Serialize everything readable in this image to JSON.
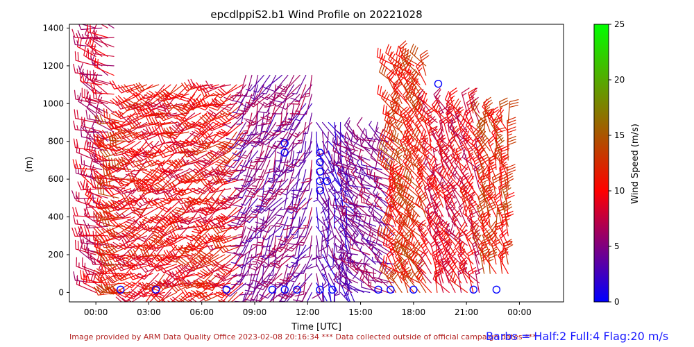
{
  "chart_data": {
    "type": "wind-barb",
    "title": "epcdlppiS2.b1 Wind Profile on 20221028",
    "xlabel": "Time [UTC]",
    "ylabel": "(m)",
    "x_ticks": [
      "00:00",
      "03:00",
      "06:00",
      "09:00",
      "12:00",
      "15:00",
      "18:00",
      "21:00",
      "00:00"
    ],
    "x_tick_hours": [
      0,
      3,
      6,
      9,
      12,
      15,
      18,
      21,
      24
    ],
    "xlim_hours": [
      -1.5,
      26.5
    ],
    "y_ticks": [
      0,
      200,
      400,
      600,
      800,
      1000,
      1200,
      1400
    ],
    "ylim": [
      -50,
      1420
    ],
    "grid": false,
    "colorbar": {
      "label": "Wind Speed (m/s)",
      "range": [
        0,
        25
      ],
      "ticks": [
        0,
        5,
        10,
        15,
        20,
        25
      ],
      "colors": [
        "#0000ff",
        "#ff0000",
        "#00ff00"
      ]
    },
    "barbs_legend": "Barbs = Half:2 Full:4 Flag:20 m/s",
    "calm_points": [
      {
        "hour": 1.4,
        "height": 15
      },
      {
        "hour": 3.4,
        "height": 15
      },
      {
        "hour": 7.4,
        "height": 15
      },
      {
        "hour": 10.0,
        "height": 15
      },
      {
        "hour": 10.7,
        "height": 15
      },
      {
        "hour": 11.4,
        "height": 15
      },
      {
        "hour": 12.7,
        "height": 15
      },
      {
        "hour": 13.4,
        "height": 15
      },
      {
        "hour": 16.0,
        "height": 15
      },
      {
        "hour": 16.7,
        "height": 15
      },
      {
        "hour": 18.0,
        "height": 15
      },
      {
        "hour": 21.4,
        "height": 15
      },
      {
        "hour": 22.7,
        "height": 15
      },
      {
        "hour": 10.7,
        "height": 790
      },
      {
        "hour": 10.7,
        "height": 740
      },
      {
        "hour": 12.7,
        "height": 740
      },
      {
        "hour": 12.7,
        "height": 690
      },
      {
        "hour": 12.7,
        "height": 640
      },
      {
        "hour": 13.1,
        "height": 590
      },
      {
        "hour": 12.7,
        "height": 590
      },
      {
        "hour": 12.7,
        "height": 540
      },
      {
        "hour": 19.4,
        "height": 1105
      }
    ],
    "regimes": [
      {
        "hours": [
          0,
          1.2
        ],
        "heights": [
          0,
          1400
        ],
        "speed": 8,
        "direction": 290
      },
      {
        "hours": [
          1.3,
          2.2
        ],
        "heights": [
          0,
          900
        ],
        "speed": 12,
        "direction": 260
      },
      {
        "hours": [
          2.2,
          8.5
        ],
        "heights": [
          0,
          1100
        ],
        "speed": 10,
        "direction": 240
      },
      {
        "hours": [
          8.5,
          12.5
        ],
        "heights": [
          0,
          1150
        ],
        "speed": 5,
        "direction": 210
      },
      {
        "hours": [
          12.5,
          14.5
        ],
        "heights": [
          0,
          900
        ],
        "speed": 3,
        "direction": 160
      },
      {
        "hours": [
          14.5,
          17.0
        ],
        "heights": [
          0,
          800
        ],
        "speed": 5,
        "direction": 300
      },
      {
        "hours": [
          17.0,
          19.0
        ],
        "heights": [
          0,
          1200
        ],
        "speed": 12,
        "direction": 320
      },
      {
        "hours": [
          19.0,
          22.0
        ],
        "heights": [
          0,
          950
        ],
        "speed": 9,
        "direction": 330
      },
      {
        "hours": [
          22.0,
          23.4
        ],
        "heights": [
          100,
          900
        ],
        "speed": 12,
        "direction": 340
      }
    ]
  },
  "footer": {
    "credit": "Image provided by ARM Data Quality Office 2023-02-08 20:16:34    *** Data collected outside of official campaign dates ***",
    "barbs_note": "Barbs = Half:2 Full:4 Flag:20 m/s"
  }
}
